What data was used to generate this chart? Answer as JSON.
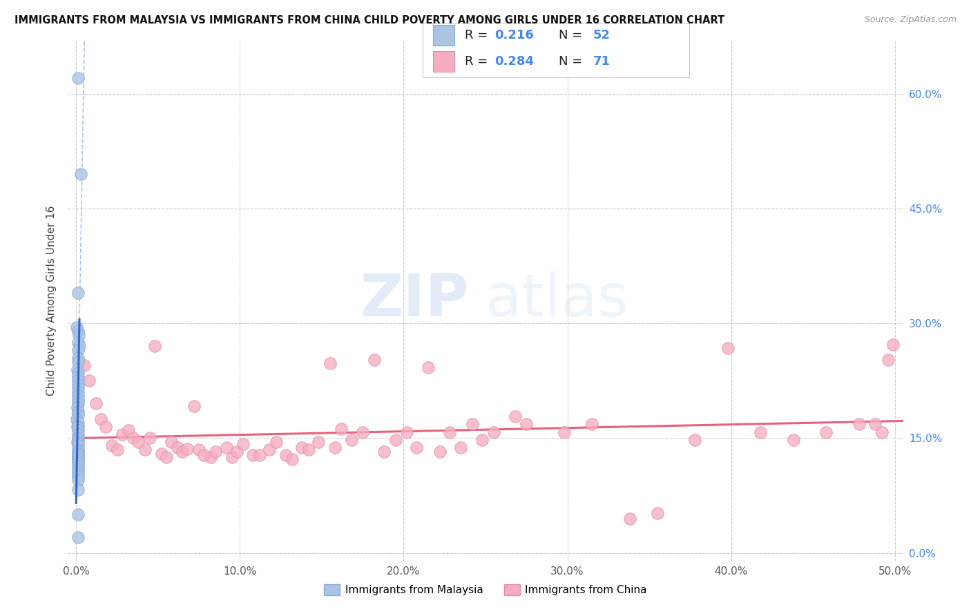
{
  "title": "IMMIGRANTS FROM MALAYSIA VS IMMIGRANTS FROM CHINA CHILD POVERTY AMONG GIRLS UNDER 16 CORRELATION CHART",
  "source": "Source: ZipAtlas.com",
  "ylabel": "Child Poverty Among Girls Under 16",
  "x_ticks": [
    0.0,
    0.1,
    0.2,
    0.3,
    0.4,
    0.5
  ],
  "x_tick_labels": [
    "0.0%",
    "10.0%",
    "20.0%",
    "30.0%",
    "40.0%",
    "50.0%"
  ],
  "y_ticks": [
    0.0,
    0.15,
    0.3,
    0.45,
    0.6
  ],
  "y_tick_labels_right": [
    "0.0%",
    "15.0%",
    "30.0%",
    "45.0%",
    "60.0%"
  ],
  "xlim": [
    -0.005,
    0.505
  ],
  "ylim": [
    -0.01,
    0.67
  ],
  "malaysia_R": 0.216,
  "malaysia_N": 52,
  "china_R": 0.284,
  "china_N": 71,
  "malaysia_color": "#aac4e2",
  "china_color": "#f5aec0",
  "malaysia_line_color": "#3366cc",
  "china_line_color": "#e8607a",
  "malaysia_dashed_color": "#88aade",
  "legend_label_malaysia": "Immigrants from Malaysia",
  "legend_label_china": "Immigrants from China",
  "background_color": "#ffffff",
  "grid_color": "#cccccc",
  "title_color": "#111111",
  "source_color": "#999999",
  "watermark_zip": "ZIP",
  "watermark_atlas": "atlas",
  "malaysia_x": [
    0.001,
    0.003,
    0.001,
    0.0005,
    0.001,
    0.0015,
    0.001,
    0.002,
    0.001,
    0.001,
    0.001,
    0.0008,
    0.001,
    0.001,
    0.001,
    0.001,
    0.001,
    0.0012,
    0.001,
    0.001,
    0.001,
    0.0009,
    0.001,
    0.001,
    0.0005,
    0.001,
    0.001,
    0.0008,
    0.001,
    0.001,
    0.001,
    0.001,
    0.0009,
    0.001,
    0.001,
    0.001,
    0.001,
    0.001,
    0.001,
    0.001,
    0.001,
    0.001,
    0.001,
    0.001,
    0.001,
    0.001,
    0.001,
    0.001,
    0.001,
    0.001,
    0.001,
    0.001
  ],
  "malaysia_y": [
    0.62,
    0.495,
    0.34,
    0.295,
    0.29,
    0.285,
    0.275,
    0.27,
    0.265,
    0.255,
    0.25,
    0.24,
    0.235,
    0.23,
    0.225,
    0.22,
    0.215,
    0.21,
    0.205,
    0.2,
    0.195,
    0.19,
    0.185,
    0.18,
    0.175,
    0.17,
    0.165,
    0.165,
    0.16,
    0.155,
    0.15,
    0.148,
    0.145,
    0.143,
    0.14,
    0.135,
    0.132,
    0.13,
    0.128,
    0.125,
    0.122,
    0.12,
    0.117,
    0.113,
    0.11,
    0.107,
    0.103,
    0.1,
    0.095,
    0.083,
    0.05,
    0.02
  ],
  "china_x": [
    0.005,
    0.008,
    0.012,
    0.015,
    0.018,
    0.022,
    0.025,
    0.028,
    0.032,
    0.035,
    0.038,
    0.042,
    0.045,
    0.048,
    0.052,
    0.055,
    0.058,
    0.062,
    0.065,
    0.068,
    0.072,
    0.075,
    0.078,
    0.082,
    0.085,
    0.092,
    0.095,
    0.098,
    0.102,
    0.108,
    0.112,
    0.118,
    0.122,
    0.128,
    0.132,
    0.138,
    0.142,
    0.148,
    0.155,
    0.158,
    0.162,
    0.168,
    0.175,
    0.182,
    0.188,
    0.195,
    0.202,
    0.208,
    0.215,
    0.222,
    0.228,
    0.235,
    0.242,
    0.248,
    0.255,
    0.268,
    0.275,
    0.298,
    0.315,
    0.338,
    0.355,
    0.378,
    0.398,
    0.418,
    0.438,
    0.458,
    0.478,
    0.488,
    0.492,
    0.496,
    0.499
  ],
  "china_y": [
    0.245,
    0.225,
    0.195,
    0.175,
    0.165,
    0.14,
    0.135,
    0.155,
    0.16,
    0.15,
    0.145,
    0.135,
    0.15,
    0.27,
    0.13,
    0.125,
    0.145,
    0.138,
    0.132,
    0.136,
    0.192,
    0.135,
    0.128,
    0.125,
    0.132,
    0.138,
    0.125,
    0.132,
    0.142,
    0.128,
    0.128,
    0.135,
    0.145,
    0.128,
    0.122,
    0.138,
    0.135,
    0.145,
    0.248,
    0.138,
    0.162,
    0.148,
    0.158,
    0.252,
    0.132,
    0.148,
    0.158,
    0.138,
    0.242,
    0.132,
    0.158,
    0.138,
    0.168,
    0.148,
    0.158,
    0.178,
    0.168,
    0.158,
    0.168,
    0.045,
    0.052,
    0.148,
    0.268,
    0.158,
    0.148,
    0.158,
    0.168,
    0.168,
    0.158,
    0.252,
    0.272
  ]
}
